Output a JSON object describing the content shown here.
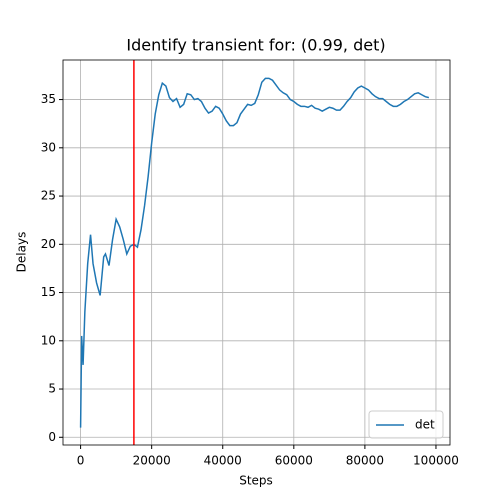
{
  "chart_data": {
    "type": "line",
    "title": "Identify transient for: (0.99, det)",
    "xlabel": "Steps",
    "ylabel": "Delays",
    "x": [
      0,
      300,
      700,
      1200,
      2000,
      2800,
      3500,
      4500,
      5500,
      6500,
      7000,
      8000,
      9000,
      10000,
      11000,
      12000,
      13000,
      14000,
      15000,
      16000,
      17000,
      18000,
      19000,
      20000,
      21000,
      22000,
      23000,
      24000,
      25000,
      26000,
      27000,
      28000,
      29000,
      30000,
      31000,
      32000,
      33000,
      34000,
      35000,
      36000,
      37000,
      38000,
      39000,
      40000,
      41000,
      42000,
      43000,
      44000,
      45000,
      46000,
      47000,
      48000,
      49000,
      50000,
      51000,
      52000,
      53000,
      54000,
      55000,
      56000,
      57000,
      58000,
      59000,
      60000,
      61000,
      62000,
      63000,
      64000,
      65000,
      66000,
      67000,
      68000,
      69000,
      70000,
      71000,
      72000,
      73000,
      74000,
      75000,
      76000,
      77000,
      78000,
      79000,
      80000,
      81000,
      82000,
      83000,
      84000,
      85000,
      86000,
      87000,
      88000,
      89000,
      90000,
      91000,
      92000,
      93000,
      94000,
      95000,
      96000,
      97000,
      98000
    ],
    "series": [
      {
        "name": "det",
        "color": "#1f77b4",
        "values": [
          1,
          10.5,
          7.5,
          13,
          18,
          21,
          18,
          16,
          14.7,
          18.7,
          19,
          17.8,
          20.5,
          22.6,
          21.8,
          20.5,
          19,
          19.8,
          20,
          19.7,
          21.5,
          24,
          27,
          30.5,
          33.5,
          35.5,
          36.7,
          36.4,
          35.2,
          34.8,
          35.1,
          34.2,
          34.5,
          35.6,
          35.5,
          35.0,
          35.1,
          34.8,
          34.1,
          33.6,
          33.8,
          34.3,
          34.1,
          33.5,
          32.8,
          32.3,
          32.3,
          32.6,
          33.5,
          34.0,
          34.5,
          34.4,
          34.6,
          35.5,
          36.8,
          37.2,
          37.2,
          37.0,
          36.5,
          36.0,
          35.7,
          35.5,
          35.0,
          34.8,
          34.5,
          34.3,
          34.3,
          34.2,
          34.4,
          34.1,
          34.0,
          33.8,
          34.0,
          34.2,
          34.1,
          33.9,
          33.9,
          34.3,
          34.8,
          35.2,
          35.8,
          36.2,
          36.4,
          36.2,
          36.0,
          35.6,
          35.3,
          35.1,
          35.1,
          34.8,
          34.5,
          34.3,
          34.3,
          34.5,
          34.8,
          35.0,
          35.3,
          35.6,
          35.7,
          35.5,
          35.3,
          35.2
        ]
      }
    ],
    "vline": 15000,
    "vline_color": "#ff0000",
    "xlim": [
      -4950,
      103950
    ],
    "xticks": [
      0,
      20000,
      40000,
      60000,
      80000,
      100000
    ],
    "ylim": [
      -0.8,
      39.1
    ],
    "yticks": [
      0,
      5,
      10,
      15,
      20,
      25,
      30,
      35
    ],
    "grid": true,
    "legend": "lower right"
  }
}
